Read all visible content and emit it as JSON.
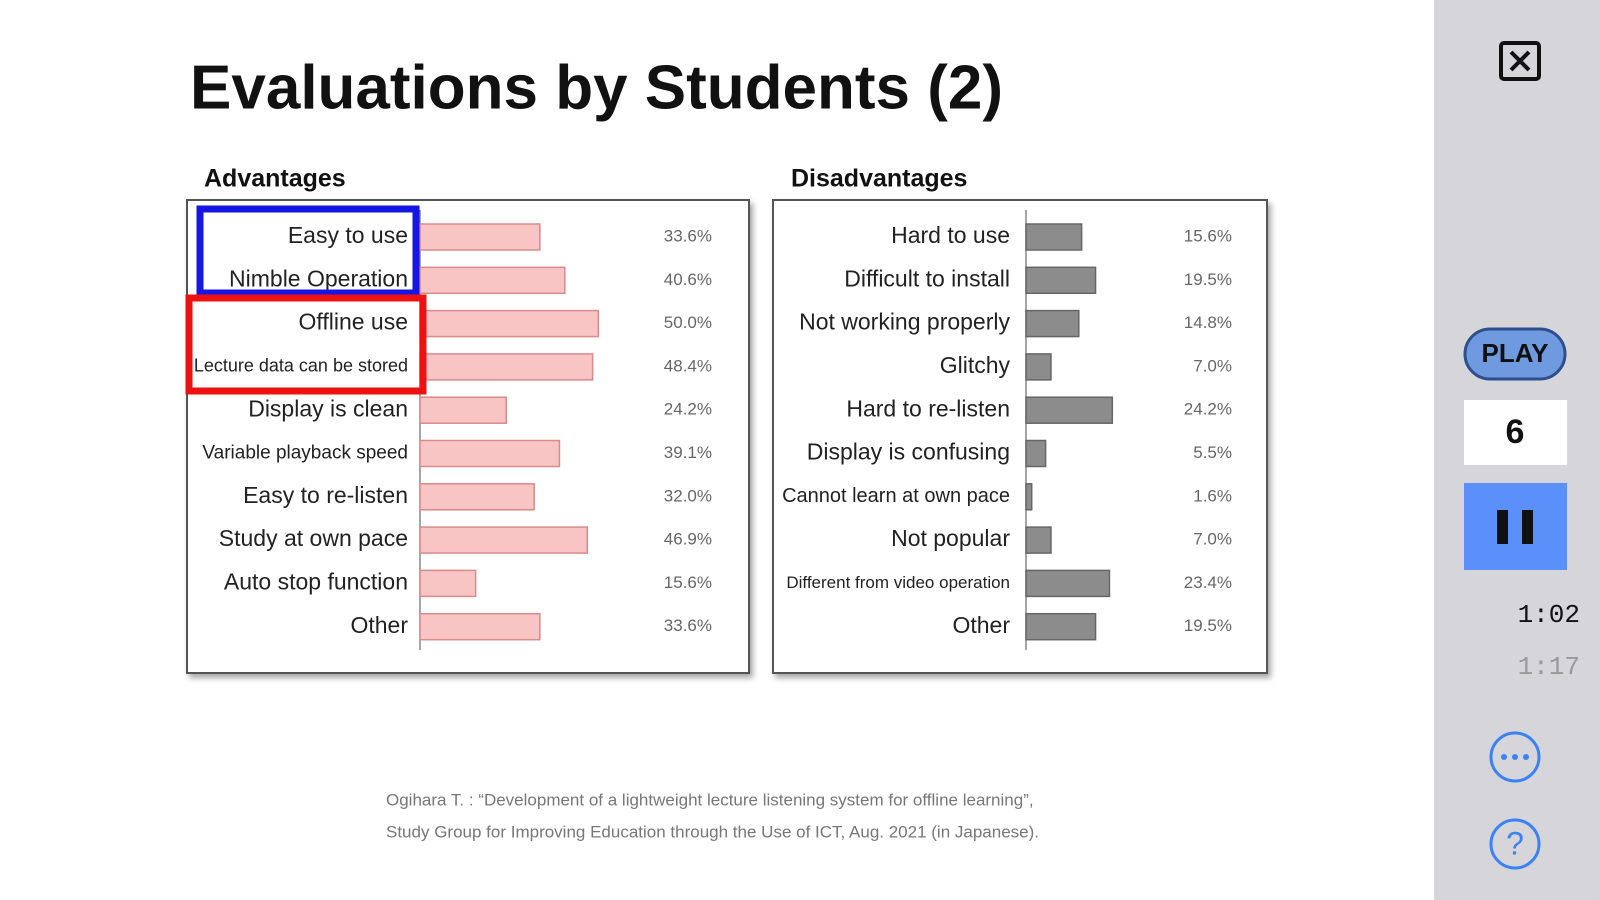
{
  "slide": {
    "title": "Evaluations by Students (2)",
    "footnote": [
      "Ogihara T. : “Development of a lightweight lecture listening system for offline learning”,",
      "Study Group for Improving Education through the Use of ICT, Aug. 2021 (in Japanese)."
    ]
  },
  "chart_data": [
    {
      "type": "bar",
      "orientation": "horizontal",
      "title": "Advantages",
      "categories": [
        "Easy to use",
        "Nimble Operation",
        "Offline use",
        "Lecture data can be stored",
        "Display is clean",
        "Variable playback speed",
        "Easy to re-listen",
        "Study at own pace",
        "Auto stop function",
        "Other"
      ],
      "values": [
        33.6,
        40.6,
        50.0,
        48.4,
        24.2,
        39.1,
        32.0,
        46.9,
        15.6,
        33.6
      ],
      "value_labels": [
        "33.6%",
        "40.6%",
        "50.0%",
        "48.4%",
        "24.2%",
        "39.1%",
        "32.0%",
        "46.9%",
        "15.6%",
        "33.6%"
      ],
      "color": "#f8c4c4",
      "xlim": [
        0,
        60
      ]
    },
    {
      "type": "bar",
      "orientation": "horizontal",
      "title": "Disadvantages",
      "categories": [
        "Hard to use",
        "Difficult to install",
        "Not working properly",
        "Glitchy",
        "Hard to re-listen",
        "Display is confusing",
        "Cannot learn at own pace",
        "Not popular",
        "Different from video operation",
        "Other"
      ],
      "values": [
        15.6,
        19.5,
        14.8,
        7.0,
        24.2,
        5.5,
        1.6,
        7.0,
        23.4,
        19.5
      ],
      "value_labels": [
        "15.6%",
        "19.5%",
        "14.8%",
        "7.0%",
        "24.2%",
        "5.5%",
        "1.6%",
        "7.0%",
        "23.4%",
        "19.5%"
      ],
      "color": "#8c8c8c",
      "xlim": [
        0,
        60
      ]
    }
  ],
  "player": {
    "play": "PLAY",
    "slide_number": "6",
    "elapsed": "1:02",
    "total": "1:17",
    "help": "?"
  }
}
